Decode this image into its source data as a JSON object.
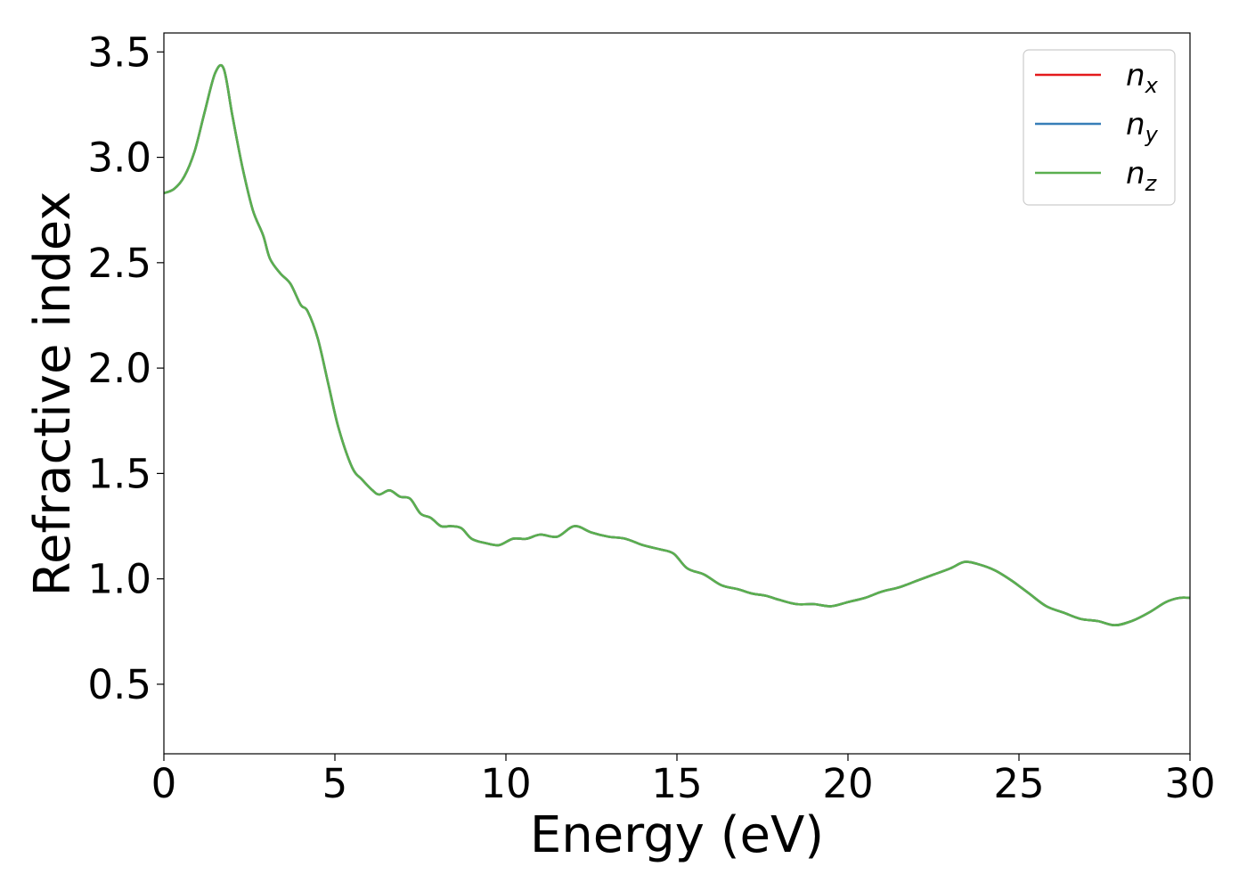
{
  "chart_data": {
    "type": "line",
    "title": "",
    "xlabel": "Energy (eV)",
    "ylabel": "Refractive index",
    "xlim": [
      0,
      30
    ],
    "ylim": [
      0.17,
      3.59
    ],
    "xticks": [
      0,
      5,
      10,
      15,
      20,
      25,
      30
    ],
    "xtick_labels": [
      "0",
      "5",
      "10",
      "15",
      "20",
      "25",
      "30"
    ],
    "yticks": [
      0.5,
      1.0,
      1.5,
      2.0,
      2.5,
      3.0,
      3.5
    ],
    "ytick_labels": [
      "0.5",
      "1.0",
      "1.5",
      "2.0",
      "2.5",
      "3.0",
      "3.5"
    ],
    "grid": false,
    "legend": "top-right",
    "x": [
      0,
      0.3,
      0.6,
      0.9,
      1.2,
      1.5,
      1.75,
      2.0,
      2.3,
      2.6,
      2.9,
      3.1,
      3.4,
      3.7,
      4.0,
      4.2,
      4.5,
      4.8,
      5.1,
      5.5,
      5.8,
      6.1,
      6.3,
      6.6,
      6.9,
      7.2,
      7.5,
      7.8,
      8.1,
      8.4,
      8.7,
      9.0,
      9.4,
      9.8,
      10.2,
      10.6,
      11.0,
      11.5,
      12.0,
      12.5,
      13.0,
      13.5,
      14.0,
      14.5,
      14.9,
      15.3,
      15.8,
      16.3,
      16.8,
      17.2,
      17.6,
      18.0,
      18.5,
      19.0,
      19.5,
      20.0,
      20.5,
      21.0,
      21.5,
      22.0,
      22.5,
      23.0,
      23.4,
      23.8,
      24.3,
      24.8,
      25.3,
      25.8,
      26.3,
      26.8,
      27.3,
      27.8,
      28.3,
      28.8,
      29.3,
      29.7,
      30.0
    ],
    "series": [
      {
        "name": "x",
        "color": "#e41a1c",
        "values": [
          2.83,
          2.85,
          2.91,
          3.03,
          3.22,
          3.4,
          3.42,
          3.2,
          2.95,
          2.75,
          2.63,
          2.52,
          2.45,
          2.4,
          2.3,
          2.27,
          2.14,
          1.93,
          1.72,
          1.53,
          1.47,
          1.42,
          1.4,
          1.42,
          1.39,
          1.38,
          1.31,
          1.29,
          1.25,
          1.25,
          1.24,
          1.19,
          1.17,
          1.16,
          1.19,
          1.19,
          1.21,
          1.2,
          1.25,
          1.22,
          1.2,
          1.19,
          1.16,
          1.14,
          1.12,
          1.05,
          1.02,
          0.97,
          0.95,
          0.93,
          0.92,
          0.9,
          0.88,
          0.88,
          0.87,
          0.89,
          0.91,
          0.94,
          0.96,
          0.99,
          1.02,
          1.05,
          1.08,
          1.07,
          1.04,
          0.99,
          0.93,
          0.87,
          0.84,
          0.81,
          0.8,
          0.78,
          0.8,
          0.84,
          0.89,
          0.91,
          0.91
        ]
      },
      {
        "name": "y",
        "color": "#377eb8",
        "values": [
          2.83,
          2.85,
          2.91,
          3.03,
          3.22,
          3.4,
          3.42,
          3.2,
          2.95,
          2.75,
          2.63,
          2.52,
          2.45,
          2.4,
          2.3,
          2.27,
          2.14,
          1.93,
          1.72,
          1.53,
          1.47,
          1.42,
          1.4,
          1.42,
          1.39,
          1.38,
          1.31,
          1.29,
          1.25,
          1.25,
          1.24,
          1.19,
          1.17,
          1.16,
          1.19,
          1.19,
          1.21,
          1.2,
          1.25,
          1.22,
          1.2,
          1.19,
          1.16,
          1.14,
          1.12,
          1.05,
          1.02,
          0.97,
          0.95,
          0.93,
          0.92,
          0.9,
          0.88,
          0.88,
          0.87,
          0.89,
          0.91,
          0.94,
          0.96,
          0.99,
          1.02,
          1.05,
          1.08,
          1.07,
          1.04,
          0.99,
          0.93,
          0.87,
          0.84,
          0.81,
          0.8,
          0.78,
          0.8,
          0.84,
          0.89,
          0.91,
          0.91
        ]
      },
      {
        "name": "z",
        "color": "#5aaf4f",
        "values": [
          2.83,
          2.85,
          2.91,
          3.03,
          3.22,
          3.4,
          3.42,
          3.2,
          2.95,
          2.75,
          2.63,
          2.52,
          2.45,
          2.4,
          2.3,
          2.27,
          2.14,
          1.93,
          1.72,
          1.53,
          1.47,
          1.42,
          1.4,
          1.42,
          1.39,
          1.38,
          1.31,
          1.29,
          1.25,
          1.25,
          1.24,
          1.19,
          1.17,
          1.16,
          1.19,
          1.19,
          1.21,
          1.2,
          1.25,
          1.22,
          1.2,
          1.19,
          1.16,
          1.14,
          1.12,
          1.05,
          1.02,
          0.97,
          0.95,
          0.93,
          0.92,
          0.9,
          0.88,
          0.88,
          0.87,
          0.89,
          0.91,
          0.94,
          0.96,
          0.99,
          1.02,
          1.05,
          1.08,
          1.07,
          1.04,
          0.99,
          0.93,
          0.87,
          0.84,
          0.81,
          0.8,
          0.78,
          0.8,
          0.84,
          0.89,
          0.91,
          0.91
        ]
      }
    ],
    "legend_entries": [
      {
        "symbol": "n",
        "subscript": "x",
        "color": "#e41a1c"
      },
      {
        "symbol": "n",
        "subscript": "y",
        "color": "#377eb8"
      },
      {
        "symbol": "n",
        "subscript": "z",
        "color": "#5aaf4f"
      }
    ]
  }
}
